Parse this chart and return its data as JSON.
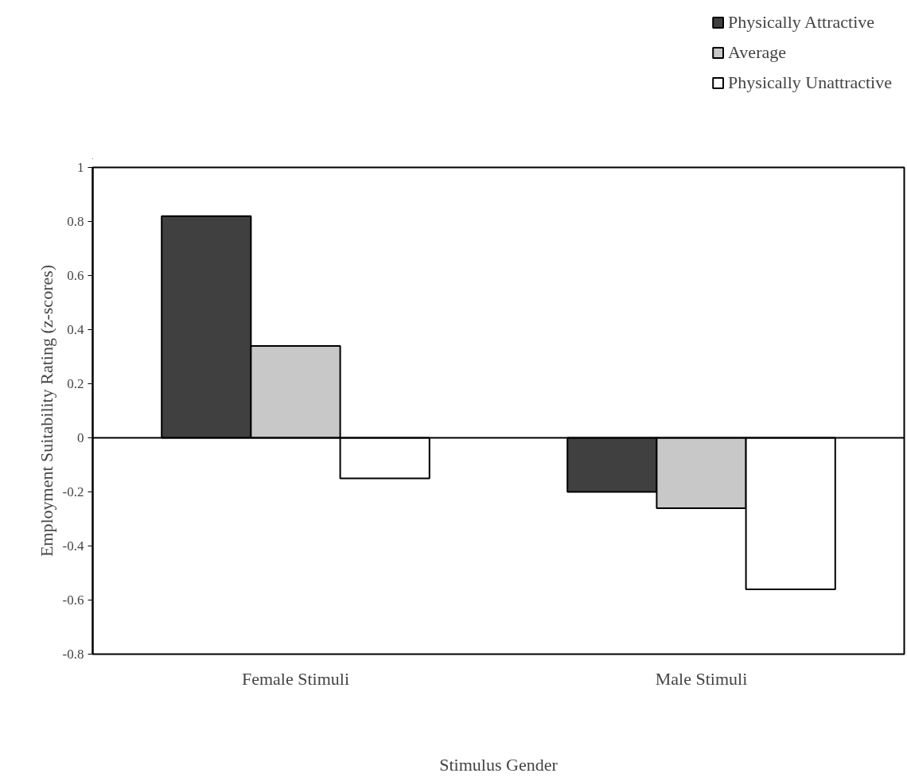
{
  "chart_data": {
    "type": "bar",
    "xlabel": "Stimulus Gender",
    "ylabel": "Employment Suitability Rating (z-scores)",
    "categories": [
      "Female Stimuli",
      "Male Stimuli"
    ],
    "series": [
      {
        "name": "Physically Attractive",
        "color": "#404040",
        "values": [
          0.82,
          -0.2
        ]
      },
      {
        "name": "Average",
        "color": "#c8c8c8",
        "values": [
          0.34,
          -0.26
        ]
      },
      {
        "name": "Physically Unattractive",
        "color": "#ffffff",
        "values": [
          -0.15,
          -0.56
        ]
      }
    ],
    "ylim": [
      -0.8,
      1
    ],
    "yticks": [
      -0.8,
      -0.6,
      -0.4,
      -0.2,
      0,
      0.2,
      0.4,
      0.6,
      0.8,
      1
    ],
    "ref_lines": [
      {
        "axis": "y",
        "value": 0
      }
    ],
    "grid": false,
    "legend": "top right"
  }
}
